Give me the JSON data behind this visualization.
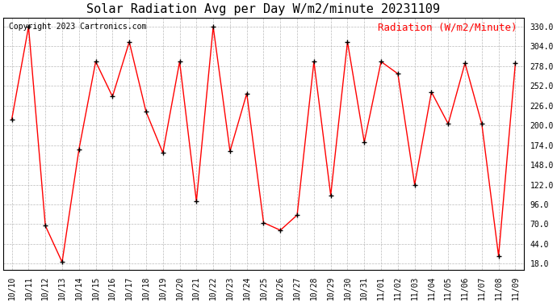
{
  "title": "Solar Radiation Avg per Day W/m2/minute 20231109",
  "copyright_text": "Copyright 2023 Cartronics.com",
  "legend_label": "Radiation (W/m2/Minute)",
  "dates": [
    "10/10",
    "10/11",
    "10/12",
    "10/13",
    "10/14",
    "10/15",
    "10/16",
    "10/17",
    "10/18",
    "10/19",
    "10/20",
    "10/21",
    "10/22",
    "10/23",
    "10/24",
    "10/25",
    "10/26",
    "10/27",
    "10/28",
    "10/29",
    "10/30",
    "10/31",
    "11/01",
    "11/02",
    "11/03",
    "11/04",
    "11/05",
    "11/06",
    "11/07",
    "11/08",
    "11/09"
  ],
  "values": [
    208,
    330,
    68,
    20,
    168,
    284,
    238,
    310,
    218,
    164,
    284,
    100,
    330,
    166,
    242,
    72,
    62,
    82,
    284,
    108,
    310,
    178,
    284,
    268,
    122,
    244,
    202,
    282,
    202,
    28,
    282
  ],
  "line_color": "red",
  "marker_color": "black",
  "background_color": "#ffffff",
  "grid_color": "#bbbbbb",
  "y_ticks": [
    18.0,
    44.0,
    70.0,
    96.0,
    122.0,
    148.0,
    174.0,
    200.0,
    226.0,
    252.0,
    278.0,
    304.0,
    330.0
  ],
  "ylim": [
    10,
    342
  ],
  "title_fontsize": 11,
  "legend_fontsize": 9,
  "copyright_fontsize": 7,
  "tick_fontsize": 7,
  "marker_size": 4
}
